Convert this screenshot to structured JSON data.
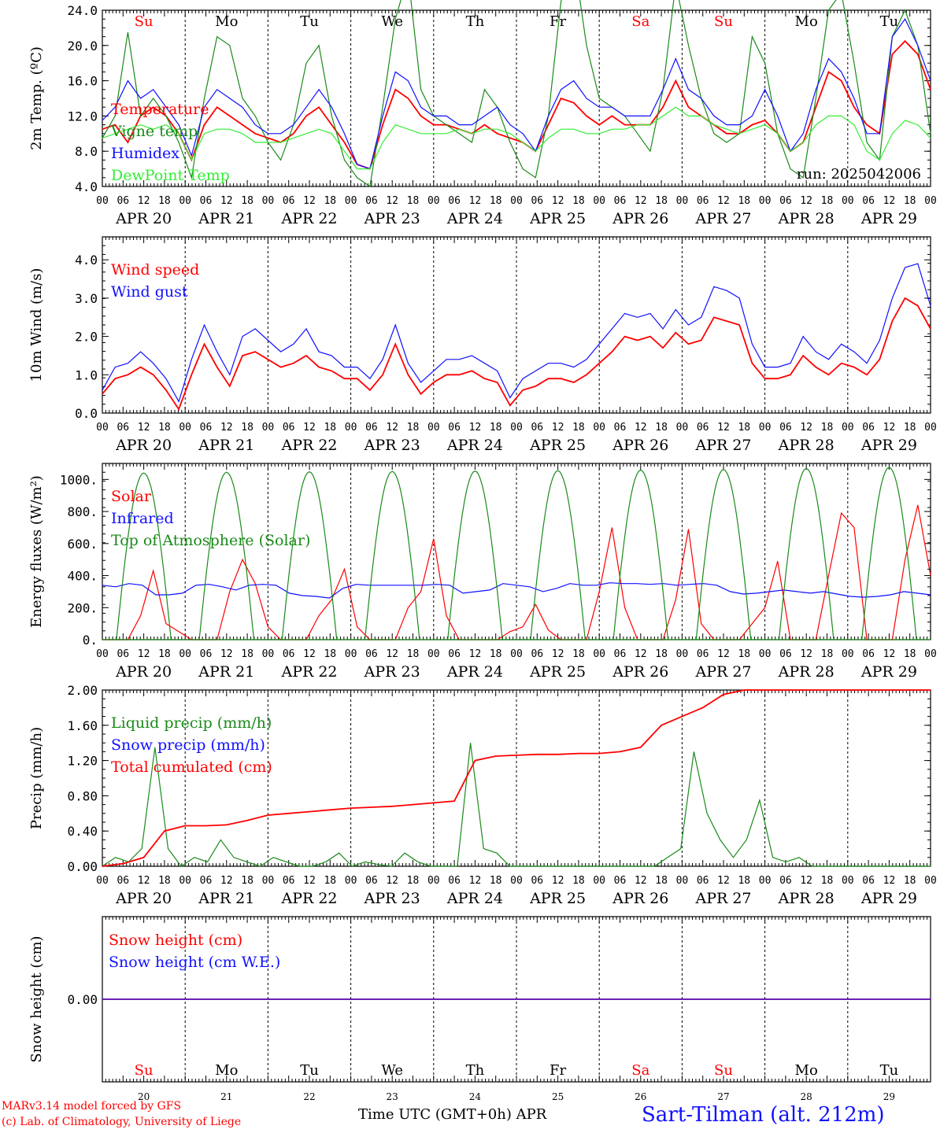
{
  "colors": {
    "red": "#ff0000",
    "green": "#1a8a1a",
    "blue": "#1010ff",
    "lightgreen": "#33ee33",
    "black": "#000000"
  },
  "common": {
    "hour_labels": [
      "00",
      "06",
      "12",
      "18"
    ],
    "date_labels": [
      "APR 20",
      "APR 21",
      "APR 22",
      "APR 23",
      "APR 24",
      "APR 25",
      "APR 26",
      "APR 27",
      "APR 28",
      "APR 29"
    ],
    "days": [
      "Su",
      "Mo",
      "Tu",
      "We",
      "Th",
      "Fr",
      "Sa",
      "Su",
      "Mo",
      "Tu"
    ],
    "day_colors": [
      "red",
      "black",
      "black",
      "black",
      "black",
      "black",
      "red",
      "red",
      "black",
      "black"
    ],
    "day_numbers": [
      "20",
      "21",
      "22",
      "23",
      "24",
      "25",
      "26",
      "27",
      "28",
      "29"
    ]
  },
  "footer": {
    "credit1": "MARv3.14 model forced by GFS",
    "credit2": "(c) Lab. of Climatology, University of Liege",
    "xlabel": "Time UTC (GMT+0h)",
    "month": "APR",
    "station": "Sart-Tilman (alt. 212m)"
  },
  "chart_data": [
    {
      "type": "line",
      "ylabel": "2m Temp. (ºC)",
      "ylim": [
        4,
        24
      ],
      "yticks": [
        "4.0",
        "8.0",
        "12.0",
        "16.0",
        "20.0",
        "24.0"
      ],
      "annotation": "run: 2025042006",
      "series": [
        {
          "name": "Temperature",
          "color": "red",
          "values": [
            10.5,
            11,
            9,
            12,
            13,
            12,
            10,
            7,
            11,
            13,
            12,
            11,
            10,
            9.5,
            9,
            10,
            12,
            13,
            11,
            9,
            6.5,
            6,
            11,
            15,
            14,
            12,
            11,
            11,
            10.5,
            10,
            11,
            10,
            9.5,
            9,
            8,
            11,
            14,
            13.5,
            12,
            11,
            12,
            11,
            11,
            11,
            13,
            16,
            13,
            12,
            11,
            10,
            10,
            11,
            11.5,
            10,
            8,
            9,
            13,
            17,
            16,
            13,
            11,
            10,
            19,
            20.5,
            19,
            15
          ]
        },
        {
          "name": "Vigne temp",
          "color": "green",
          "values": [
            9.5,
            12,
            21.5,
            12,
            14,
            12,
            9,
            5,
            14,
            21,
            20,
            14,
            12,
            9,
            7,
            11,
            18,
            20,
            12,
            7,
            5,
            4,
            13,
            23,
            28,
            15,
            12,
            11,
            10,
            9,
            15,
            13,
            9,
            6,
            5,
            12,
            25,
            30,
            20,
            14,
            13,
            12,
            10,
            8,
            15,
            27,
            20,
            14,
            10,
            9,
            10,
            21,
            18,
            10,
            6,
            5,
            14,
            24,
            26,
            18,
            9,
            7,
            21,
            24,
            20,
            10
          ]
        },
        {
          "name": "Humidex",
          "color": "blue",
          "values": [
            11.5,
            13,
            16,
            14,
            15,
            13,
            11,
            7.5,
            13,
            15,
            14,
            13,
            11,
            10,
            10,
            11,
            13,
            15,
            13,
            10,
            6.5,
            6,
            12,
            17,
            16,
            13,
            12,
            12,
            11,
            11,
            12,
            13,
            11,
            10,
            8,
            12,
            15,
            16,
            14,
            13,
            13,
            12,
            12,
            12,
            15,
            18.5,
            15,
            14,
            12,
            11,
            11,
            12,
            15,
            12,
            8,
            10,
            15,
            18.5,
            17,
            14,
            10,
            10,
            21,
            23,
            20,
            16
          ]
        },
        {
          "name": "DewPoint Temp",
          "color": "lightgreen",
          "values": [
            9.5,
            10,
            10.5,
            11,
            10.5,
            11,
            10,
            7,
            10,
            10.5,
            10.5,
            10,
            9,
            9,
            9,
            9.5,
            10,
            10.5,
            10,
            8,
            6,
            6,
            9,
            11,
            10.5,
            10,
            10,
            10,
            10.5,
            10,
            10.5,
            10.5,
            10,
            9,
            8,
            9.5,
            10.5,
            10.5,
            10,
            10,
            10.5,
            10.5,
            11,
            11,
            12,
            13,
            12,
            12,
            11,
            10.5,
            10,
            10.5,
            11,
            10,
            8,
            9,
            11,
            12,
            12,
            11,
            8,
            7,
            10,
            11.5,
            11,
            9.5
          ]
        }
      ]
    },
    {
      "type": "line",
      "ylabel": "10m Wind (m/s)",
      "ylim": [
        0,
        4.6
      ],
      "yticks": [
        "0.0",
        "1.0",
        "2.0",
        "3.0",
        "4.0"
      ],
      "series": [
        {
          "name": "Wind speed",
          "color": "red",
          "values": [
            0.5,
            0.9,
            1.0,
            1.2,
            1.0,
            0.6,
            0.1,
            1.0,
            1.8,
            1.2,
            0.7,
            1.5,
            1.6,
            1.4,
            1.2,
            1.3,
            1.5,
            1.2,
            1.1,
            0.9,
            0.9,
            0.6,
            1.0,
            1.8,
            1.0,
            0.5,
            0.8,
            1.0,
            1.0,
            1.1,
            0.9,
            0.8,
            0.2,
            0.6,
            0.7,
            0.9,
            0.9,
            0.8,
            1.0,
            1.3,
            1.6,
            2.0,
            1.9,
            2.0,
            1.7,
            2.1,
            1.8,
            1.9,
            2.5,
            2.4,
            2.3,
            1.3,
            0.9,
            0.9,
            1.0,
            1.5,
            1.2,
            1.0,
            1.3,
            1.2,
            1.0,
            1.4,
            2.4,
            3.0,
            2.8,
            2.2
          ]
        },
        {
          "name": "Wind gust",
          "color": "blue",
          "values": [
            0.6,
            1.2,
            1.3,
            1.6,
            1.3,
            0.9,
            0.3,
            1.4,
            2.3,
            1.6,
            1.0,
            2.0,
            2.2,
            1.9,
            1.6,
            1.8,
            2.2,
            1.6,
            1.5,
            1.2,
            1.2,
            0.9,
            1.4,
            2.3,
            1.3,
            0.8,
            1.1,
            1.4,
            1.4,
            1.5,
            1.3,
            1.1,
            0.4,
            0.9,
            1.1,
            1.3,
            1.3,
            1.2,
            1.4,
            1.8,
            2.2,
            2.6,
            2.5,
            2.6,
            2.2,
            2.7,
            2.3,
            2.5,
            3.3,
            3.2,
            3.0,
            1.8,
            1.2,
            1.2,
            1.3,
            2.0,
            1.6,
            1.4,
            1.8,
            1.6,
            1.3,
            1.9,
            3.0,
            3.8,
            3.9,
            2.8
          ]
        }
      ]
    },
    {
      "type": "line",
      "ylabel": "Energy fluxes (W/m²)",
      "ylim": [
        0,
        1100
      ],
      "yticks": [
        "0.",
        "200.",
        "400.",
        "600.",
        "800.",
        "1000."
      ],
      "series": [
        {
          "name": "Solar",
          "color": "red",
          "values": [
            0,
            0,
            0,
            150,
            430,
            100,
            50,
            0,
            0,
            0,
            300,
            500,
            350,
            80,
            0,
            0,
            0,
            150,
            250,
            440,
            80,
            0,
            0,
            0,
            200,
            300,
            630,
            150,
            0,
            0,
            0,
            0,
            50,
            80,
            220,
            60,
            0,
            0,
            0,
            300,
            700,
            200,
            0,
            0,
            0,
            250,
            690,
            100,
            0,
            0,
            0,
            100,
            200,
            490,
            0,
            0,
            0,
            400,
            790,
            700,
            0,
            0,
            0,
            500,
            840,
            400
          ]
        },
        {
          "name": "Infrared",
          "color": "blue",
          "values": [
            340,
            330,
            350,
            340,
            280,
            280,
            290,
            340,
            345,
            330,
            310,
            340,
            345,
            340,
            290,
            275,
            270,
            260,
            320,
            345,
            340,
            340,
            340,
            340,
            340,
            345,
            340,
            290,
            300,
            310,
            350,
            340,
            330,
            300,
            320,
            350,
            340,
            340,
            355,
            350,
            350,
            345,
            350,
            340,
            345,
            350,
            340,
            300,
            285,
            290,
            300,
            310,
            300,
            290,
            300,
            285,
            270,
            265,
            270,
            280,
            300,
            290,
            280
          ]
        },
        {
          "name": "Top of Atmosphere (Solar)",
          "color": "green",
          "values": [
            1040,
            1045,
            1048,
            1050,
            1052,
            1055,
            1058,
            1062,
            1068,
            1075
          ]
        }
      ]
    },
    {
      "type": "line",
      "ylabel": "Precip (mm/h)",
      "ylim": [
        0,
        2.0
      ],
      "yticks": [
        "0.00",
        "0.40",
        "0.80",
        "1.20",
        "1.60",
        "2.00"
      ],
      "series": [
        {
          "name": "Liquid precip (mm/h)",
          "color": "green",
          "values": [
            0,
            0.1,
            0.05,
            0.2,
            1.35,
            0.2,
            0,
            0.1,
            0.05,
            0.3,
            0.1,
            0.05,
            0,
            0.1,
            0.05,
            0,
            0,
            0.05,
            0.15,
            0,
            0.05,
            0.02,
            0,
            0.15,
            0.05,
            0,
            0,
            0,
            1.4,
            0.2,
            0.15,
            0,
            0,
            0,
            0,
            0,
            0,
            0,
            0,
            0,
            0,
            0,
            0,
            0.1,
            0.2,
            1.3,
            0.6,
            0.3,
            0.1,
            0.3,
            0.75,
            0.1,
            0.05,
            0.1,
            0,
            0,
            0,
            0,
            0,
            0,
            0,
            0,
            0,
            0
          ]
        },
        {
          "name": "Snow precip (mm/h)",
          "color": "blue",
          "values": []
        },
        {
          "name": "Total cumulated (cm)",
          "color": "red",
          "values": [
            0,
            0.03,
            0.1,
            0.4,
            0.46,
            0.46,
            0.47,
            0.52,
            0.58,
            0.6,
            0.62,
            0.64,
            0.66,
            0.67,
            0.68,
            0.7,
            0.72,
            0.74,
            1.2,
            1.25,
            1.26,
            1.27,
            1.27,
            1.28,
            1.28,
            1.3,
            1.35,
            1.6,
            1.7,
            1.8,
            1.95,
            2.0,
            2.0,
            2.0,
            2.0,
            2.0,
            2.0,
            2.0,
            2.0,
            2.0,
            2.0
          ]
        }
      ]
    },
    {
      "type": "line",
      "ylabel": "Snow height (cm)",
      "yticks": [
        "0.00"
      ],
      "series": [
        {
          "name": "Snow height (cm)",
          "color": "red",
          "values": [
            0,
            0
          ]
        },
        {
          "name": "Snow height (cm W.E.)",
          "color": "blue",
          "values": [
            0,
            0
          ]
        }
      ]
    }
  ]
}
